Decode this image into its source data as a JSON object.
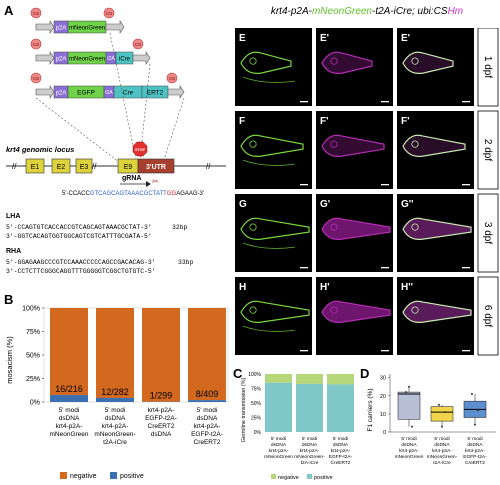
{
  "panels": {
    "A": "A",
    "B": "B",
    "C": "C",
    "D": "D",
    "E": "E",
    "E1": "E'",
    "E2": "E'",
    "F": "F",
    "F1": "F'",
    "F2": "F'",
    "G": "G",
    "G1": "G'",
    "G2": "G''",
    "H": "H",
    "H1": "H'",
    "H2": "H''"
  },
  "panel_a": {
    "cs": "CS",
    "constructs": [
      {
        "name": "mNeonGreen",
        "parts": [
          "p2A",
          "mNeonGreen"
        ]
      },
      {
        "name": "mNeonGreen-t2A-iCre",
        "parts": [
          "p2A",
          "mNeonGreen",
          "t2A",
          "iCre"
        ]
      },
      {
        "name": "EGFP-t2A-CreERT2",
        "parts": [
          "p2A",
          "EGFP",
          "t2A",
          "Cre",
          "ERT2"
        ]
      }
    ],
    "locus_label": "krt4 genomic locus",
    "exons": [
      "E1",
      "E2",
      "E3",
      "E9"
    ],
    "utr": "3'UTR",
    "stop": "STOP",
    "grna": "gRNA",
    "grna_seq_prefix": "5'-CCACC",
    "grna_seq_target": "GTCAGCAGTAAACGCTATT",
    "grna_seq_pam": "GG",
    "grna_seq_suffix": "AGAAG-3'",
    "lha_title": "LHA",
    "lha_top": "5'-CCAGTGTCACCACCGTCAGCAGTAAACGCTAT-3'",
    "lha_top_len": "32bp",
    "lha_bottom": "3'-GGTCACAGTGGTGGCAGTCGTCATTTGCGATA-5'",
    "rha_title": "RHA",
    "rha_top": "5'-GGAGAAGCCCGTCCAAACCCCCAGCCGACACAG-3'",
    "rha_top_len": "33bp",
    "rha_bottom": "3'-CCTCTTCGGGCAGGTTTGGGGGTCGGCTGTGTC-5'"
  },
  "panel_e": {
    "title_prefix": "krt4-p2A-",
    "title_green": "mNeonGreen",
    "title_mid": "-t2A-iCre; ubi:CS",
    "title_magenta": "Hm",
    "stages": [
      "1 dpf",
      "2 dpf",
      "3 dpf",
      "6 dpf"
    ]
  },
  "colors": {
    "negative": "#d2691e",
    "positive": "#3a6fb0",
    "c_negative": "#b5d77a",
    "c_positive": "#7fc7c9",
    "d_box1": "#b9bfd4",
    "d_box2": "#f0d44a",
    "d_box3": "#5b8fd0",
    "green": "#7ad63c",
    "magenta": "#d233d2"
  },
  "chart_data": [
    {
      "panel": "B",
      "type": "bar",
      "ylabel": "mosacism (%)",
      "yticks": [
        "0%",
        "25%",
        "50%",
        "75%",
        "100%"
      ],
      "ylim": [
        0,
        100
      ],
      "categories": [
        "5' modi dsDNA krt4-p2A-mNeonGreen",
        "5' modi dsDNA krt4-p2A-mNeonGreen-t2A-iCre",
        "krt4-p2A-EGFP-t2A-CreERT2 dsDNA",
        "5' modi dsDNA krt4-p2A-EGFP-t2A-CreERT2"
      ],
      "category_lines": [
        [
          "5' modi",
          "dsDNA",
          "krt4-p2A-",
          "mNeonGreen"
        ],
        [
          "5' modi",
          "dsDNA",
          "krt4-p2A-",
          "mNeonGreen-",
          "t2A-iCre"
        ],
        [
          "krt4-p2A-",
          "EGFP-t2A-",
          "CreERT2",
          "dsDNA"
        ],
        [
          "5' modi",
          "dsDNA",
          "krt4-p2A-",
          "EGFP-t2A-",
          "CreERT2"
        ]
      ],
      "series": [
        {
          "name": "negative",
          "values": [
            92.6,
            95.7,
            99.7,
            98.0
          ]
        },
        {
          "name": "positive",
          "values": [
            7.4,
            4.3,
            0.3,
            2.0
          ]
        }
      ],
      "data_labels": [
        "16/216",
        "12/282",
        "1/299",
        "8/409"
      ],
      "legend": [
        "negative",
        "positive"
      ],
      "legend_position": "bottom"
    },
    {
      "panel": "C",
      "type": "bar",
      "ylabel": "Germline transmission (%)",
      "yticks": [
        "0%",
        "25%",
        "50%",
        "75%",
        "100%"
      ],
      "ylim": [
        0,
        100
      ],
      "category_lines": [
        [
          "5' modi",
          "dsDNA",
          "krt4-p2A-",
          "mNeonGreen"
        ],
        [
          "5' modi",
          "dsDNA",
          "krt4-p2A-",
          "mNeonGreen-",
          "t2A-iCre"
        ],
        [
          "5' modi",
          "dsDNA",
          "krt4-p2A-",
          "EGFP-t2A-",
          "CreERT2"
        ]
      ],
      "series": [
        {
          "name": "positive",
          "values": [
            85,
            83,
            82
          ]
        },
        {
          "name": "negative",
          "values": [
            15,
            17,
            18
          ]
        }
      ],
      "legend": [
        "negative",
        "positive"
      ],
      "legend_position": "bottom"
    },
    {
      "panel": "D",
      "type": "box",
      "ylabel": "F1 carriers (%)",
      "yticks": [
        "0",
        "10",
        "20",
        "30"
      ],
      "ylim": [
        0,
        32
      ],
      "category_lines": [
        [
          "5' modi",
          "dsDNA",
          "krt4-p2A-",
          "mNeonGreen"
        ],
        [
          "5' modi",
          "dsDNA",
          "krt4-p2A-",
          "mNeonGreen-",
          "t2A-iCre"
        ],
        [
          "5' modi",
          "dsDNA",
          "krt4-p2A-",
          "EGFP-t2A-",
          "CreERT2"
        ]
      ],
      "boxes": [
        {
          "min": 3,
          "q1": 7,
          "median": 21,
          "q3": 22,
          "max": 25,
          "points": [
            22,
            25,
            3
          ]
        },
        {
          "min": 3,
          "q1": 6,
          "median": 11,
          "q3": 14,
          "max": 15,
          "points": [
            15,
            3,
            11
          ]
        },
        {
          "min": 4,
          "q1": 8,
          "median": 12.5,
          "q3": 17,
          "max": 21,
          "points": [
            21,
            4,
            12
          ]
        }
      ]
    }
  ]
}
